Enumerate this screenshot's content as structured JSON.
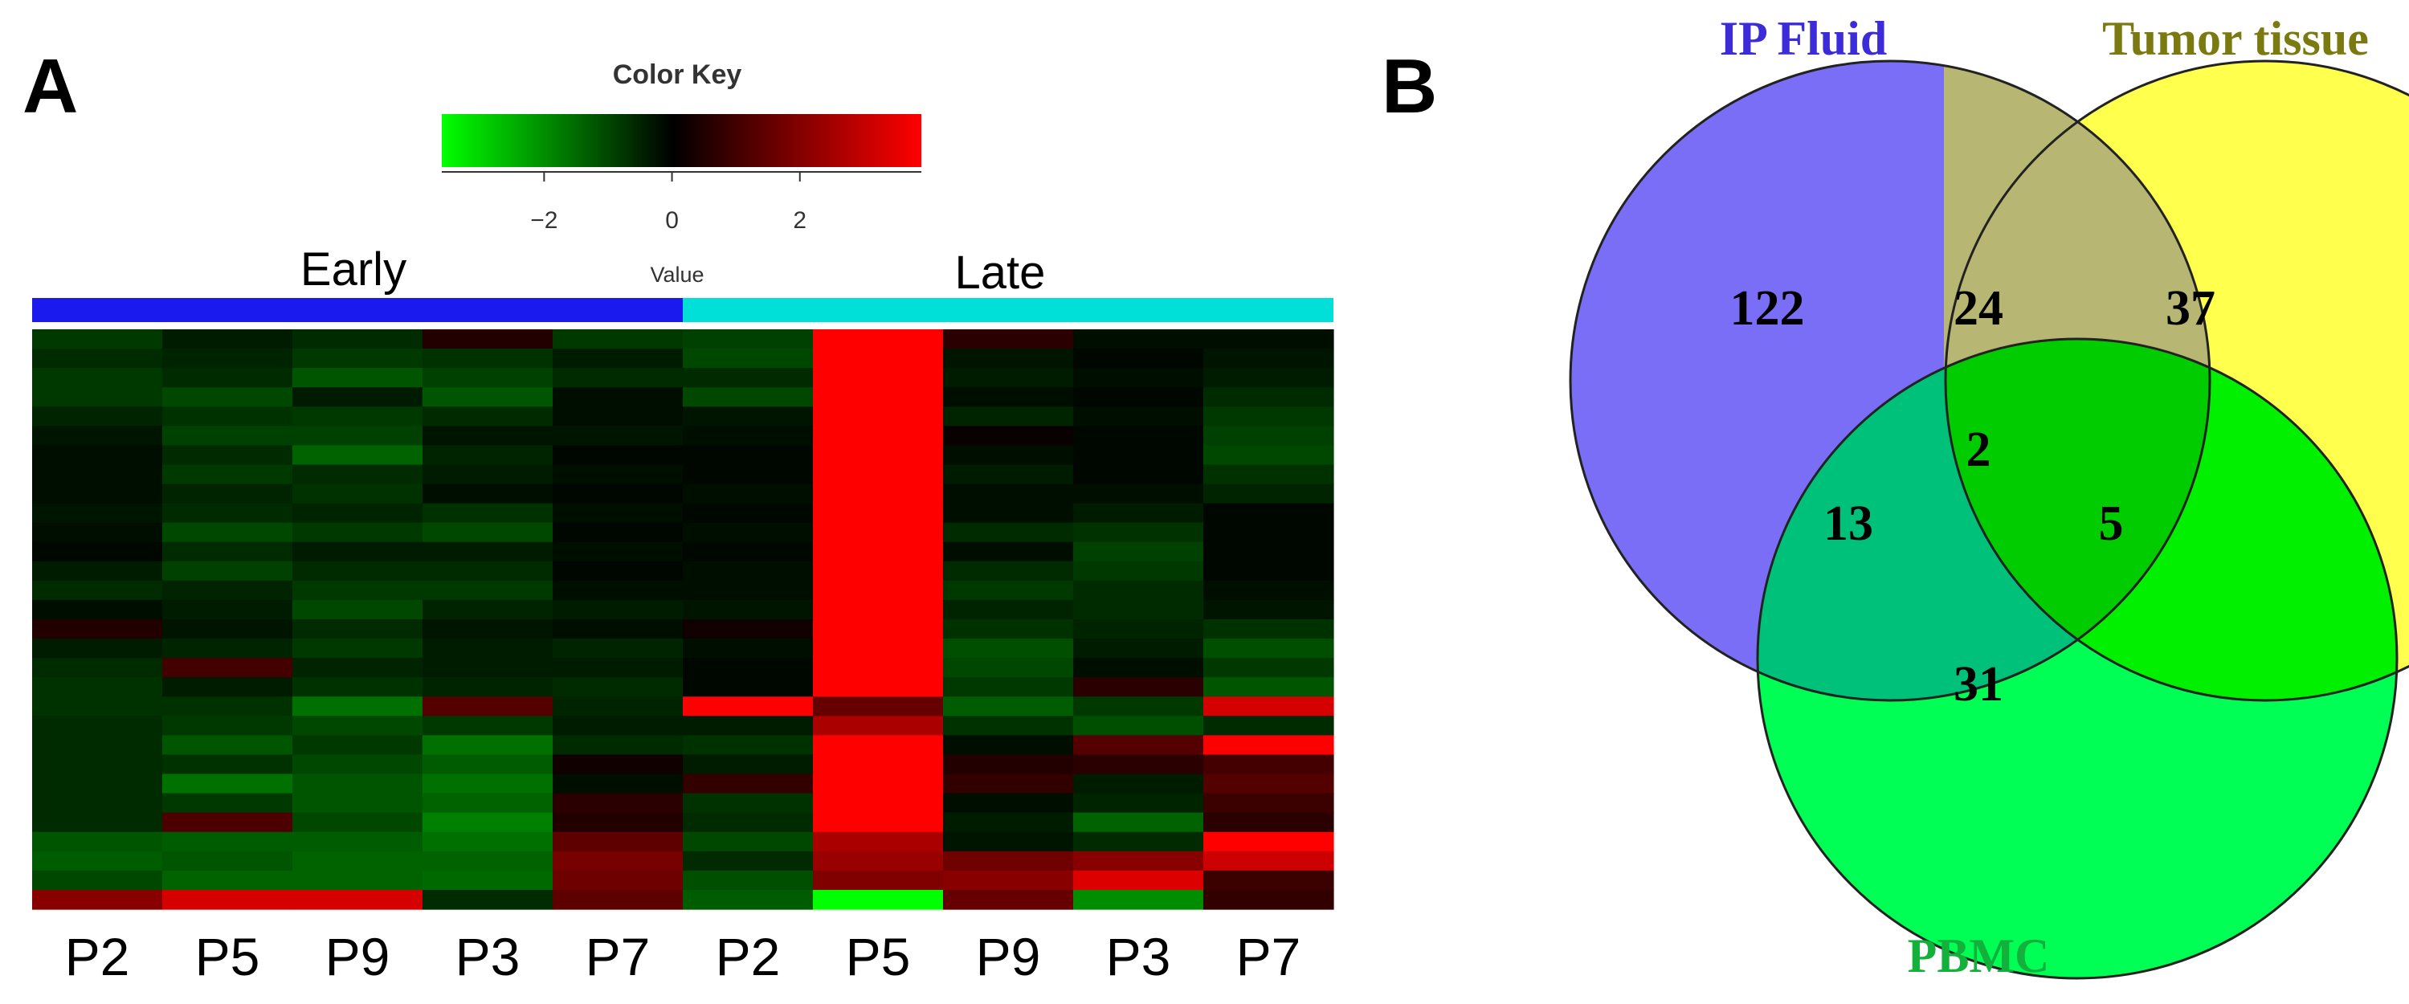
{
  "panel_a_letter": "A",
  "panel_b_letter": "B",
  "chart_data": [
    {
      "type": "heatmap",
      "color_key": {
        "title": "Color Key",
        "axis_label": "Value",
        "ticks": [
          "−2",
          "0",
          "2"
        ],
        "tick_values": [
          -2,
          0,
          2
        ],
        "range": [
          -3.6,
          3.9
        ],
        "colors": [
          "#00ff00",
          "#000000",
          "#ff0000"
        ]
      },
      "groups": [
        {
          "name": "Early",
          "color": "#1a1aee",
          "columns": 5
        },
        {
          "name": "Late",
          "color": "#00e0d8",
          "columns": 5
        }
      ],
      "columns": [
        "P2",
        "P5",
        "P9",
        "P3",
        "P7",
        "P2",
        "P5",
        "P9",
        "P3",
        "P7"
      ],
      "values": [
        [
          -0.8,
          -0.4,
          -0.6,
          0.4,
          -0.8,
          -0.9,
          4.0,
          0.5,
          -0.2,
          -0.2
        ],
        [
          -0.6,
          -0.5,
          -0.8,
          -0.7,
          -0.4,
          -1.0,
          4.0,
          -0.3,
          -0.1,
          -0.3
        ],
        [
          -0.8,
          -0.6,
          -1.2,
          -0.9,
          -0.6,
          -0.6,
          4.0,
          -0.4,
          -0.2,
          -0.4
        ],
        [
          -0.8,
          -1.0,
          -0.4,
          -1.2,
          -0.2,
          -1.0,
          4.0,
          -0.2,
          -0.1,
          -0.6
        ],
        [
          -0.5,
          -0.7,
          -0.8,
          -0.6,
          -0.2,
          -0.3,
          4.0,
          -0.5,
          -0.2,
          -0.8
        ],
        [
          -0.3,
          -0.9,
          -0.9,
          -0.3,
          -0.3,
          -0.2,
          4.0,
          0.1,
          -0.1,
          -0.9
        ],
        [
          -0.2,
          -0.6,
          -1.4,
          -0.5,
          -0.1,
          -0.1,
          4.0,
          -0.2,
          -0.1,
          -1.0
        ],
        [
          -0.2,
          -0.8,
          -0.6,
          -0.4,
          -0.2,
          -0.1,
          4.0,
          -0.4,
          -0.1,
          -0.7
        ],
        [
          -0.2,
          -0.5,
          -0.7,
          -0.2,
          -0.1,
          -0.2,
          4.0,
          -0.2,
          -0.2,
          -0.5
        ],
        [
          -0.3,
          -0.6,
          -0.5,
          -0.7,
          -0.2,
          -0.1,
          4.0,
          -0.2,
          -0.4,
          -0.1
        ],
        [
          -0.2,
          -1.0,
          -0.8,
          -1.0,
          -0.1,
          -0.2,
          4.0,
          -0.6,
          -0.7,
          -0.1
        ],
        [
          -0.1,
          -0.6,
          -0.4,
          -0.4,
          -0.2,
          -0.1,
          4.0,
          -0.2,
          -0.9,
          -0.1
        ],
        [
          -0.4,
          -0.9,
          -0.6,
          -0.6,
          -0.1,
          -0.2,
          4.0,
          -0.6,
          -0.8,
          -0.1
        ],
        [
          -0.6,
          -0.5,
          -0.8,
          -0.8,
          -0.2,
          -0.2,
          4.0,
          -0.8,
          -0.6,
          -0.2
        ],
        [
          -0.2,
          -0.4,
          -1.0,
          -0.5,
          -0.4,
          -0.3,
          4.0,
          -0.5,
          -0.6,
          -0.3
        ],
        [
          0.4,
          -0.3,
          -0.6,
          -0.3,
          -0.2,
          0.2,
          4.0,
          -0.7,
          -0.5,
          -0.7
        ],
        [
          -0.4,
          -0.5,
          -0.8,
          -0.4,
          -0.5,
          -0.2,
          4.0,
          -1.1,
          -0.4,
          -1.1
        ],
        [
          -0.6,
          0.8,
          -0.5,
          -0.4,
          -0.4,
          -0.1,
          4.0,
          -1.0,
          -0.2,
          -0.8
        ],
        [
          -0.7,
          -0.4,
          -0.7,
          -0.5,
          -0.6,
          -0.1,
          4.0,
          -0.8,
          0.5,
          -1.2
        ],
        [
          -0.7,
          -0.7,
          -1.6,
          1.0,
          -0.5,
          3.5,
          1.2,
          -1.3,
          -0.8,
          2.5
        ],
        [
          -0.6,
          -0.8,
          -1.0,
          -0.8,
          -0.4,
          -0.4,
          2.0,
          -0.7,
          -1.1,
          -0.6
        ],
        [
          -0.6,
          -1.2,
          -0.8,
          -1.6,
          -0.6,
          -0.7,
          4.0,
          -0.2,
          1.0,
          3.6
        ],
        [
          -0.6,
          -0.7,
          -1.0,
          -1.3,
          0.2,
          -0.4,
          4.0,
          0.4,
          0.5,
          0.8
        ],
        [
          -0.6,
          -1.6,
          -1.2,
          -1.6,
          -0.2,
          0.6,
          4.0,
          0.6,
          -0.4,
          1.0
        ],
        [
          -0.6,
          -0.8,
          -1.2,
          -1.4,
          0.5,
          -0.7,
          4.0,
          -0.2,
          -0.5,
          0.7
        ],
        [
          -0.6,
          0.9,
          -1.0,
          -1.8,
          0.4,
          -0.6,
          4.0,
          -0.4,
          -1.4,
          0.5
        ],
        [
          -1.2,
          -1.3,
          -1.3,
          -1.6,
          1.1,
          -1.0,
          2.0,
          -0.3,
          -0.6,
          3.2
        ],
        [
          -1.3,
          -1.2,
          -1.4,
          -1.4,
          1.4,
          -0.6,
          1.8,
          1.3,
          1.6,
          2.4
        ],
        [
          -1.0,
          -1.4,
          -1.4,
          -1.5,
          1.3,
          -1.1,
          1.5,
          1.6,
          2.6,
          0.7
        ],
        [
          1.6,
          2.5,
          2.5,
          -0.6,
          1.1,
          -1.3,
          -3.6,
          1.2,
          -2.0,
          0.6
        ]
      ]
    },
    {
      "type": "venn",
      "sets": [
        {
          "name": "IP Fluid",
          "color": "#7b6ef6",
          "label_color": "#3b2bd8"
        },
        {
          "name": "Tumor tissue",
          "color": "#ffff4d",
          "label_color": "#7a7a10"
        },
        {
          "name": "PBMC",
          "color": "#00ff55",
          "label_color": "#13b13b"
        }
      ],
      "regions": [
        {
          "sets": [
            "IP Fluid"
          ],
          "count": "122"
        },
        {
          "sets": [
            "IP Fluid",
            "Tumor tissue"
          ],
          "count": "24"
        },
        {
          "sets": [
            "Tumor tissue"
          ],
          "count": "37"
        },
        {
          "sets": [
            "IP Fluid",
            "Tumor tissue",
            "PBMC"
          ],
          "count": "2"
        },
        {
          "sets": [
            "IP Fluid",
            "PBMC"
          ],
          "count": "13"
        },
        {
          "sets": [
            "Tumor tissue",
            "PBMC"
          ],
          "count": "5"
        },
        {
          "sets": [
            "PBMC"
          ],
          "count": "31"
        }
      ]
    }
  ]
}
